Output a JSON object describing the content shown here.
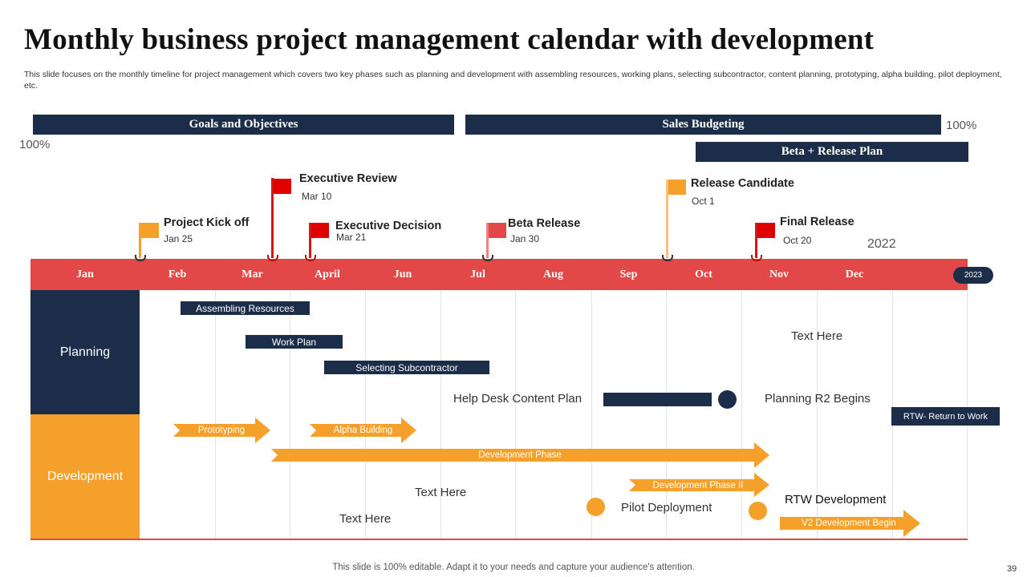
{
  "title": "Monthly business project management calendar with development",
  "subtitle": "This slide focuses on the monthly timeline for project management which covers two key phases such as planning and development with assembling resources, working plans, selecting subcontractor, content planning, prototyping, alpha building, pilot deployment, etc.",
  "bars": {
    "goals": "Goals and Objectives",
    "sales": "Sales Budgeting",
    "beta": "Beta + Release Plan",
    "sales_pct": "100%",
    "goals_pct": "100%"
  },
  "milestones": [
    {
      "label": "Project Kick off",
      "date": "Jan 25",
      "color": "#f5a02a"
    },
    {
      "label": "Executive Review",
      "date": "Mar 10",
      "color": "#e00000"
    },
    {
      "label": "Executive Decision",
      "date": "Mar 21",
      "color": "#e00000"
    },
    {
      "label": "Beta Release",
      "date": "Jan 30",
      "color": "#e24848"
    },
    {
      "label": "Release Candidate",
      "date": "Oct 1",
      "color": "#f5a02a"
    },
    {
      "label": "Final Release",
      "date": "Oct 20",
      "color": "#e00000"
    }
  ],
  "year_2022": "2022",
  "year_2023": "2023",
  "months": [
    "Jan",
    "Feb",
    "Mar",
    "April",
    "Jun",
    "Jul",
    "Aug",
    "Sep",
    "Oct",
    "Nov",
    "Dec"
  ],
  "rows": {
    "planning": "Planning",
    "development": "Development"
  },
  "planning_tasks": {
    "assembling": "Assembling Resources",
    "work_plan": "Work Plan",
    "subcontractor": "Selecting Subcontractor",
    "help_desk": "Help Desk Content Plan",
    "r2": "Planning R2 Begins",
    "rtw": "RTW- Return to Work",
    "text_here_top": "Text Here"
  },
  "dev_tasks": {
    "prototyping": "Prototyping",
    "alpha": "Alpha Building",
    "dev_phase": "Development Phase",
    "dev_phase_2": "Development Phase II",
    "pilot": "Pilot Deployment",
    "rtw_dev": "RTW Development",
    "v2": "V2 Development Begin",
    "text_here_1": "Text Here",
    "text_here_2": "Text Here"
  },
  "colors": {
    "navy": "#1b2d48",
    "red": "#e24848",
    "orange": "#f5a02a"
  },
  "footer": "This slide is 100% editable. Adapt it to your needs and capture your audience's attention.",
  "page_number": "39"
}
